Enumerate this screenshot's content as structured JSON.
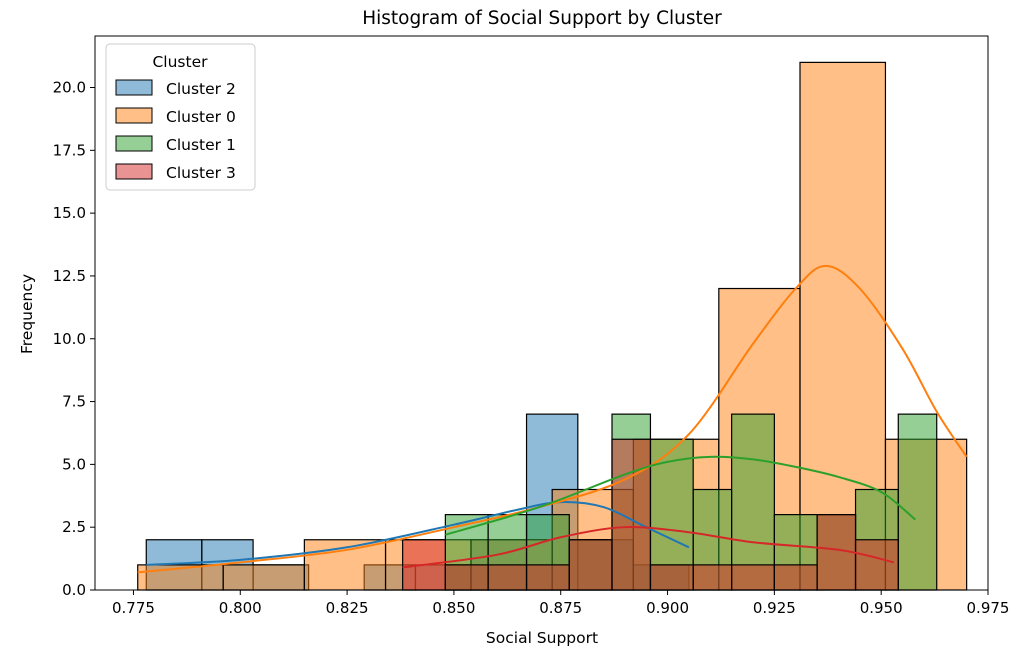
{
  "chart_data": {
    "type": "histogram",
    "title": "Histogram of Social Support by Cluster",
    "xlabel": "Social Support",
    "ylabel": "Frequency",
    "xlim": [
      0.766,
      0.975
    ],
    "ylim": [
      0,
      22.05
    ],
    "x_ticks": [
      "0.775",
      "0.800",
      "0.825",
      "0.850",
      "0.875",
      "0.900",
      "0.925",
      "0.950",
      "0.975"
    ],
    "y_ticks": [
      "0.0",
      "2.5",
      "5.0",
      "7.5",
      "10.0",
      "12.5",
      "15.0",
      "17.5",
      "20.0"
    ],
    "legend": {
      "title": "Cluster",
      "placement": "top-left",
      "entries": [
        "Cluster 2",
        "Cluster 0",
        "Cluster 1",
        "Cluster 3"
      ]
    },
    "series": [
      {
        "name": "Cluster 2",
        "color": "#1f77b4",
        "bins": [
          {
            "x0": 0.778,
            "x1": 0.791,
            "count": 2
          },
          {
            "x0": 0.791,
            "x1": 0.803,
            "count": 2
          },
          {
            "x0": 0.803,
            "x1": 0.816,
            "count": 1
          },
          {
            "x0": 0.816,
            "x1": 0.829,
            "count": 0
          },
          {
            "x0": 0.829,
            "x1": 0.841,
            "count": 1
          },
          {
            "x0": 0.841,
            "x1": 0.854,
            "count": 1
          },
          {
            "x0": 0.854,
            "x1": 0.867,
            "count": 2
          },
          {
            "x0": 0.867,
            "x1": 0.879,
            "count": 7
          },
          {
            "x0": 0.879,
            "x1": 0.892,
            "count": 2
          },
          {
            "x0": 0.892,
            "x1": 0.905,
            "count": 1
          }
        ],
        "kde": [
          [
            0.778,
            1.0
          ],
          [
            0.8,
            1.2
          ],
          [
            0.825,
            1.7
          ],
          [
            0.85,
            2.6
          ],
          [
            0.865,
            3.2
          ],
          [
            0.875,
            3.5
          ],
          [
            0.885,
            3.3
          ],
          [
            0.895,
            2.5
          ],
          [
            0.905,
            1.7
          ]
        ]
      },
      {
        "name": "Cluster 0",
        "color": "#ff7f0e",
        "bins": [
          {
            "x0": 0.776,
            "x1": 0.796,
            "count": 1
          },
          {
            "x0": 0.796,
            "x1": 0.815,
            "count": 1
          },
          {
            "x0": 0.815,
            "x1": 0.834,
            "count": 2
          },
          {
            "x0": 0.834,
            "x1": 0.854,
            "count": 2
          },
          {
            "x0": 0.854,
            "x1": 0.873,
            "count": 2
          },
          {
            "x0": 0.873,
            "x1": 0.892,
            "count": 4
          },
          {
            "x0": 0.892,
            "x1": 0.912,
            "count": 6
          },
          {
            "x0": 0.912,
            "x1": 0.931,
            "count": 12
          },
          {
            "x0": 0.931,
            "x1": 0.951,
            "count": 21
          },
          {
            "x0": 0.951,
            "x1": 0.97,
            "count": 6
          }
        ],
        "kde": [
          [
            0.776,
            0.7
          ],
          [
            0.8,
            1.1
          ],
          [
            0.825,
            1.6
          ],
          [
            0.85,
            2.5
          ],
          [
            0.87,
            3.3
          ],
          [
            0.89,
            4.4
          ],
          [
            0.905,
            6.2
          ],
          [
            0.92,
            9.8
          ],
          [
            0.93,
            12.0
          ],
          [
            0.937,
            12.9
          ],
          [
            0.945,
            12.0
          ],
          [
            0.955,
            9.6
          ],
          [
            0.963,
            7.1
          ],
          [
            0.97,
            5.3
          ]
        ]
      },
      {
        "name": "Cluster 1",
        "color": "#2ca02c",
        "bins": [
          {
            "x0": 0.848,
            "x1": 0.858,
            "count": 3
          },
          {
            "x0": 0.858,
            "x1": 0.867,
            "count": 3
          },
          {
            "x0": 0.867,
            "x1": 0.877,
            "count": 3
          },
          {
            "x0": 0.877,
            "x1": 0.887,
            "count": 2
          },
          {
            "x0": 0.887,
            "x1": 0.896,
            "count": 7
          },
          {
            "x0": 0.896,
            "x1": 0.906,
            "count": 6
          },
          {
            "x0": 0.906,
            "x1": 0.915,
            "count": 4
          },
          {
            "x0": 0.915,
            "x1": 0.925,
            "count": 7
          },
          {
            "x0": 0.925,
            "x1": 0.935,
            "count": 3
          },
          {
            "x0": 0.935,
            "x1": 0.944,
            "count": 3
          },
          {
            "x0": 0.944,
            "x1": 0.954,
            "count": 4
          },
          {
            "x0": 0.954,
            "x1": 0.963,
            "count": 7
          }
        ],
        "kde": [
          [
            0.848,
            2.2
          ],
          [
            0.87,
            3.3
          ],
          [
            0.89,
            4.6
          ],
          [
            0.9,
            5.1
          ],
          [
            0.91,
            5.3
          ],
          [
            0.92,
            5.2
          ],
          [
            0.93,
            4.9
          ],
          [
            0.94,
            4.5
          ],
          [
            0.95,
            3.9
          ],
          [
            0.958,
            2.8
          ]
        ]
      },
      {
        "name": "Cluster 3",
        "color": "#d62728",
        "bins": [
          {
            "x0": 0.838,
            "x1": 0.848,
            "count": 2
          },
          {
            "x0": 0.848,
            "x1": 0.858,
            "count": 1
          },
          {
            "x0": 0.858,
            "x1": 0.867,
            "count": 1
          },
          {
            "x0": 0.867,
            "x1": 0.877,
            "count": 1
          },
          {
            "x0": 0.877,
            "x1": 0.887,
            "count": 2
          },
          {
            "x0": 0.887,
            "x1": 0.896,
            "count": 6
          },
          {
            "x0": 0.896,
            "x1": 0.906,
            "count": 1
          },
          {
            "x0": 0.906,
            "x1": 0.915,
            "count": 1
          },
          {
            "x0": 0.915,
            "x1": 0.925,
            "count": 1
          },
          {
            "x0": 0.925,
            "x1": 0.935,
            "count": 1
          },
          {
            "x0": 0.935,
            "x1": 0.944,
            "count": 3
          },
          {
            "x0": 0.944,
            "x1": 0.954,
            "count": 2
          }
        ],
        "kde": [
          [
            0.838,
            0.9
          ],
          [
            0.86,
            1.4
          ],
          [
            0.875,
            2.1
          ],
          [
            0.89,
            2.5
          ],
          [
            0.905,
            2.3
          ],
          [
            0.92,
            1.9
          ],
          [
            0.94,
            1.6
          ],
          [
            0.953,
            1.1
          ]
        ]
      }
    ]
  }
}
